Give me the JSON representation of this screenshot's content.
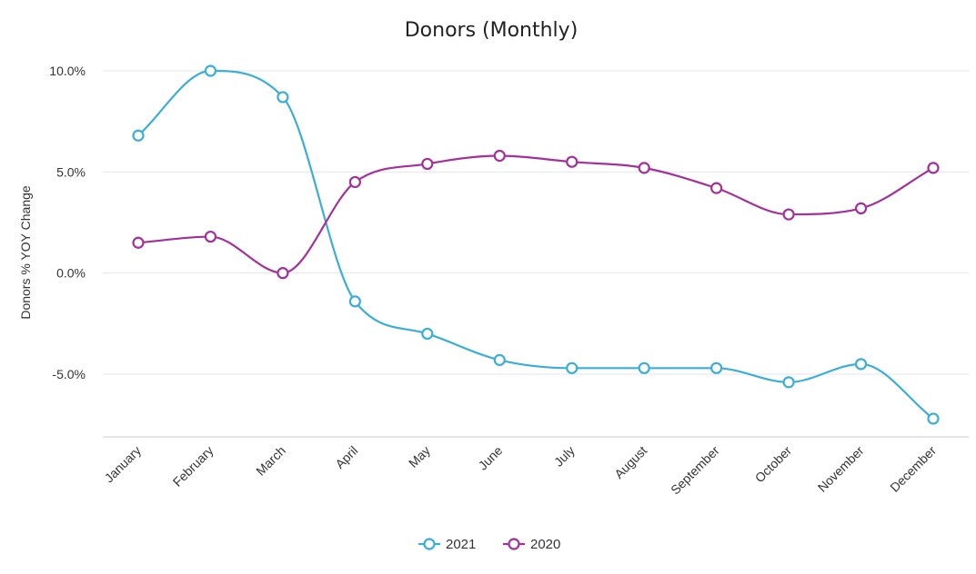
{
  "chart_data": {
    "type": "line",
    "title": "Donors (Monthly)",
    "xlabel": "",
    "ylabel": "Donors % YOY Change",
    "categories": [
      "January",
      "February",
      "March",
      "April",
      "May",
      "June",
      "July",
      "August",
      "September",
      "October",
      "November",
      "December"
    ],
    "series": [
      {
        "name": "2021",
        "color": "#3aaed8",
        "values": [
          6.8,
          10.0,
          8.7,
          -1.4,
          -3.0,
          -4.3,
          -4.7,
          -4.7,
          -4.7,
          -5.4,
          -4.5,
          -7.2
        ]
      },
      {
        "name": "2020",
        "color": "#a3309b",
        "values": [
          1.5,
          1.8,
          0.0,
          4.5,
          5.4,
          5.8,
          5.5,
          5.2,
          4.2,
          2.9,
          3.2,
          5.2
        ]
      }
    ],
    "yticks": [
      "10.0%",
      "5.0%",
      "0.0%",
      "-5.0%"
    ],
    "ytick_values": [
      10,
      5,
      0,
      -5
    ],
    "ylim": [
      -8.1,
      10.0
    ],
    "grid": true,
    "legend_position": "bottom"
  }
}
